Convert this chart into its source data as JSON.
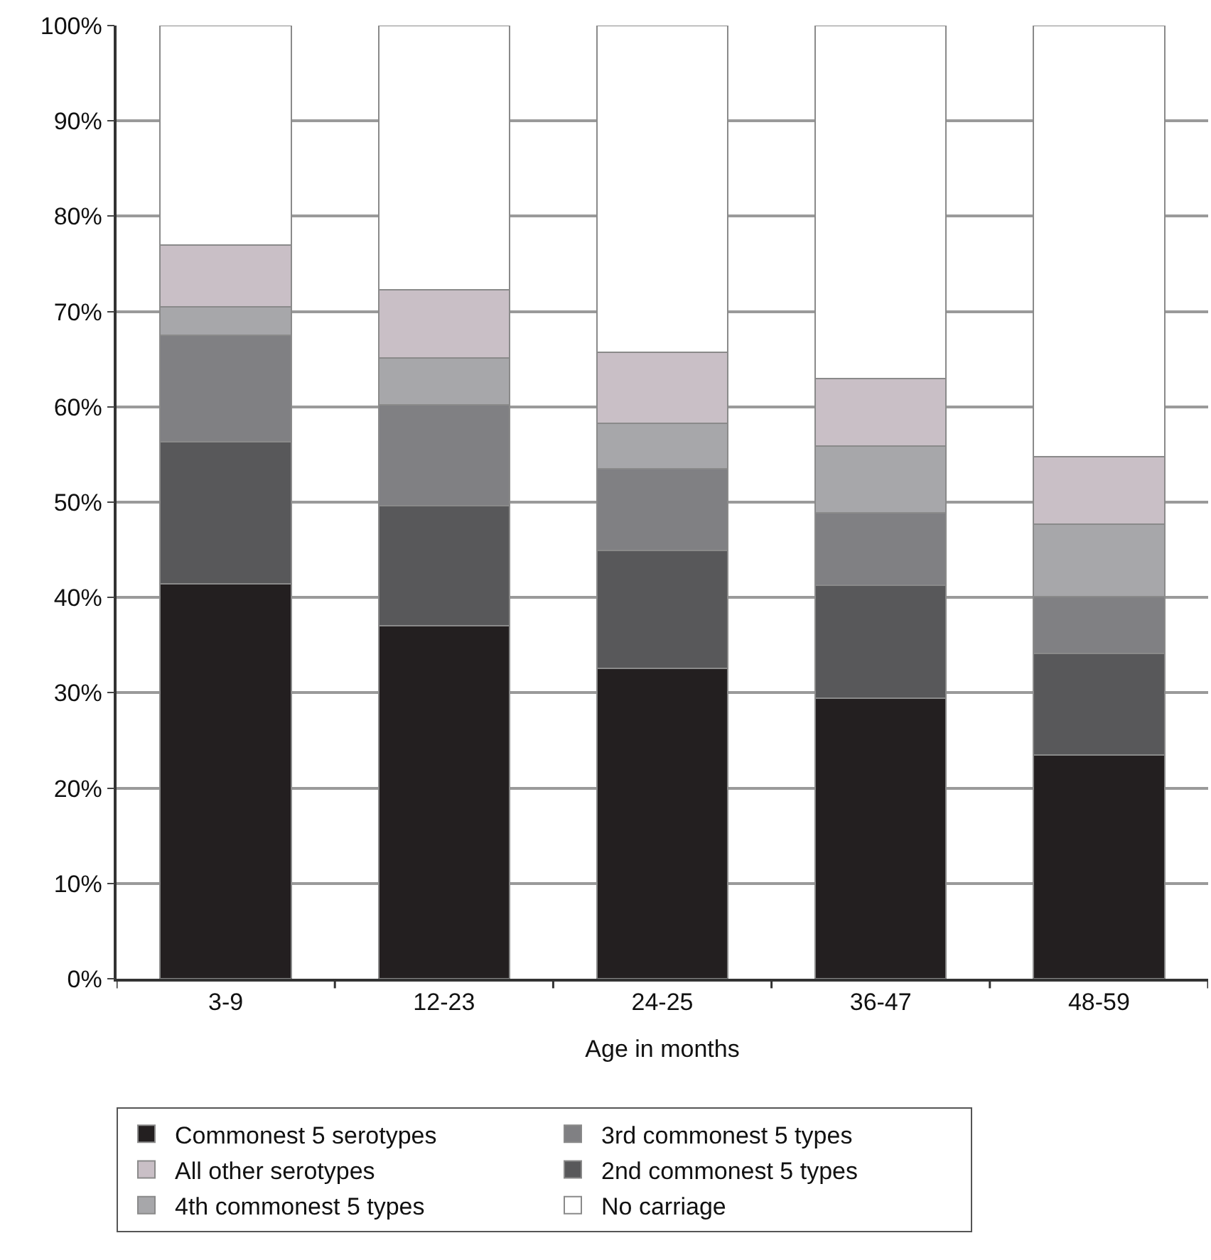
{
  "chart_data": {
    "type": "bar",
    "stacked": true,
    "xlabel": "Age in months",
    "categories": [
      "3-9",
      "12-23",
      "24-25",
      "36-47",
      "48-59"
    ],
    "series": [
      {
        "name": "Commonest 5 serotypes",
        "color": "#231f20",
        "values": [
          41.4,
          37.0,
          32.6,
          29.4,
          23.5
        ]
      },
      {
        "name": "2nd commonest 5 types",
        "color": "#58585a",
        "values": [
          14.9,
          12.6,
          12.3,
          11.9,
          10.6
        ]
      },
      {
        "name": "3rd commonest 5 types",
        "color": "#808083",
        "values": [
          11.2,
          10.6,
          8.6,
          7.6,
          6.0
        ]
      },
      {
        "name": "4th commonest 5 types",
        "color": "#a7a7aa",
        "values": [
          3.0,
          4.9,
          4.8,
          7.0,
          7.6
        ]
      },
      {
        "name": "All other serotypes",
        "color": "#c9bfc6",
        "values": [
          6.5,
          7.2,
          7.4,
          7.1,
          7.1
        ]
      },
      {
        "name": "No carriage",
        "color": "#ffffff",
        "values": [
          23.0,
          27.7,
          34.3,
          37.0,
          45.2
        ]
      }
    ],
    "ylim": [
      0,
      100
    ],
    "yticks": [
      {
        "value": 0,
        "label": "0%"
      },
      {
        "value": 10,
        "label": "10%"
      },
      {
        "value": 20,
        "label": "20%"
      },
      {
        "value": 30,
        "label": "30%"
      },
      {
        "value": 40,
        "label": "40%"
      },
      {
        "value": 50,
        "label": "50%"
      },
      {
        "value": 60,
        "label": "60%"
      },
      {
        "value": 70,
        "label": "70%"
      },
      {
        "value": 80,
        "label": "80%"
      },
      {
        "value": 90,
        "label": "90%"
      },
      {
        "value": 100,
        "label": "100%"
      }
    ],
    "grid": "y",
    "legend": "bottom"
  }
}
